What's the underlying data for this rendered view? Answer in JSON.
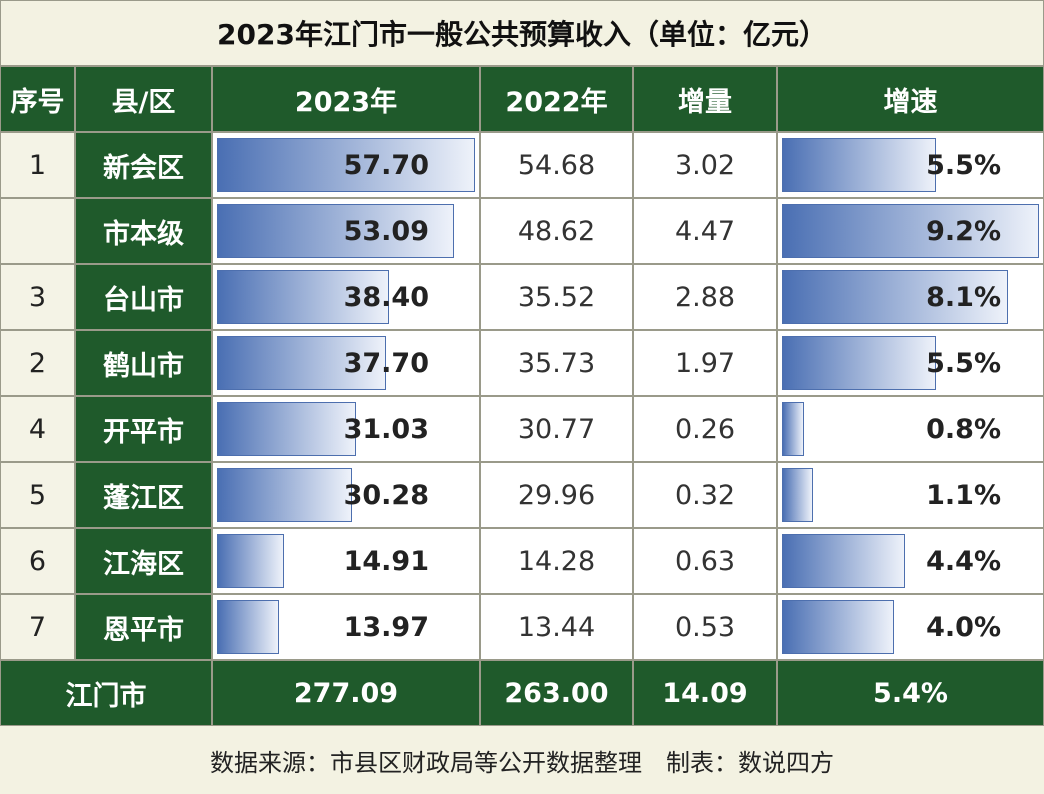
{
  "title": "2023年江门市一般公共预算收入（单位：亿元）",
  "table": {
    "header": [
      "序号",
      "县/区",
      "2023年",
      "2022年",
      "增量",
      "增速"
    ],
    "rows": [
      [
        "1",
        "新会区",
        "57.70",
        "54.68",
        "3.02",
        "5.5%"
      ],
      [
        null,
        "市本级",
        "53.09",
        "48.62",
        "4.47",
        "9.2%"
      ],
      [
        "3",
        "台山市",
        "38.40",
        "35.52",
        "2.88",
        "8.1%"
      ],
      [
        "2",
        "鹤山市",
        "37.70",
        "35.73",
        "1.97",
        "5.5%"
      ],
      [
        "4",
        "开平市",
        "31.03",
        "30.77",
        "0.26",
        "0.8%"
      ],
      [
        "5",
        "蓬江区",
        "30.28",
        "29.96",
        "0.32",
        "1.1%"
      ],
      [
        "6",
        "江海区",
        "14.91",
        "14.28",
        "0.63",
        "4.4%"
      ],
      [
        "7",
        "恩平市",
        "13.97",
        "13.44",
        "0.53",
        "4.0%"
      ]
    ],
    "total": [
      "江门市",
      "277.09",
      "263.00",
      "14.09",
      "5.4%"
    ]
  },
  "footer": "数据来源：市县区财政局等公开数据整理　制表：数说四方"
}
